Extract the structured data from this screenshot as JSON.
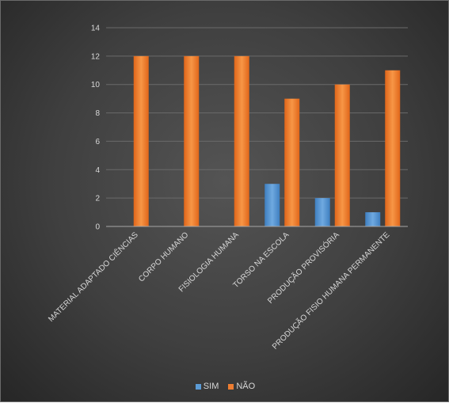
{
  "chart_data": {
    "type": "bar",
    "categories": [
      "MATERIAL ADAPTADO CIÊNCIAS",
      "CORPO HUMANO",
      "FISIOLOGIA HUMANA",
      "TORSO NA ESCOLA",
      "PRODUÇÃO PROVISÓRIA",
      "PRODUÇÃO FISIO HUMANA PERMANENTE"
    ],
    "series": [
      {
        "name": "SIM",
        "color": "#5b9bd5",
        "values": [
          0,
          0,
          0,
          3,
          2,
          1
        ]
      },
      {
        "name": "NÃO",
        "color": "#ed7d31",
        "values": [
          12,
          12,
          12,
          9,
          10,
          11
        ]
      }
    ],
    "ylim": [
      0,
      14
    ],
    "yticks": [
      0,
      2,
      4,
      6,
      8,
      10,
      12,
      14
    ],
    "grid": true,
    "legend": "bottom"
  }
}
